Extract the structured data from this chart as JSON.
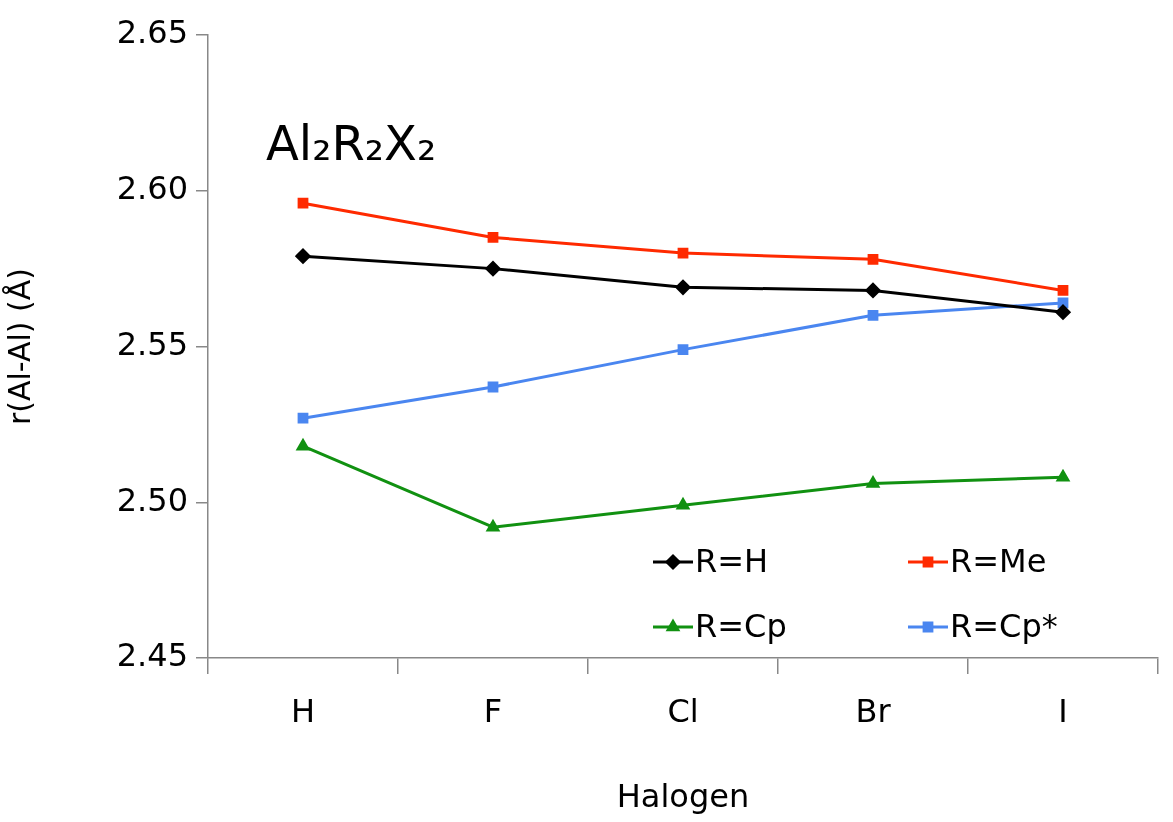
{
  "chart_data": {
    "type": "line",
    "title": "Al₂R₂X₂",
    "xlabel": "Halogen",
    "ylabel": "r(Al-Al) (Å)",
    "categories": [
      "H",
      "F",
      "Cl",
      "Br",
      "I"
    ],
    "ylim": [
      2.45,
      2.65
    ],
    "yticks": [
      {
        "value": 2.45,
        "label": "2.45"
      },
      {
        "value": 2.5,
        "label": "2.50"
      },
      {
        "value": 2.55,
        "label": "2.55"
      },
      {
        "value": 2.6,
        "label": "2.60"
      },
      {
        "value": 2.65,
        "label": "2.65"
      }
    ],
    "grid": false,
    "legend": "bottom right",
    "series": [
      {
        "name": "R=H",
        "color": "#000000",
        "marker": "diamond",
        "values": [
          2.579,
          2.575,
          2.569,
          2.568,
          2.561
        ]
      },
      {
        "name": "R=Me",
        "color": "#ff2a00",
        "marker": "square",
        "values": [
          2.596,
          2.585,
          2.58,
          2.578,
          2.568
        ]
      },
      {
        "name": "R=Cp",
        "color": "#119111",
        "marker": "triangle",
        "values": [
          2.518,
          2.492,
          2.499,
          2.506,
          2.508
        ]
      },
      {
        "name": "R=Cp*",
        "color": "#4a86f0",
        "marker": "square",
        "values": [
          2.527,
          2.537,
          2.549,
          2.56,
          2.564
        ]
      }
    ]
  }
}
